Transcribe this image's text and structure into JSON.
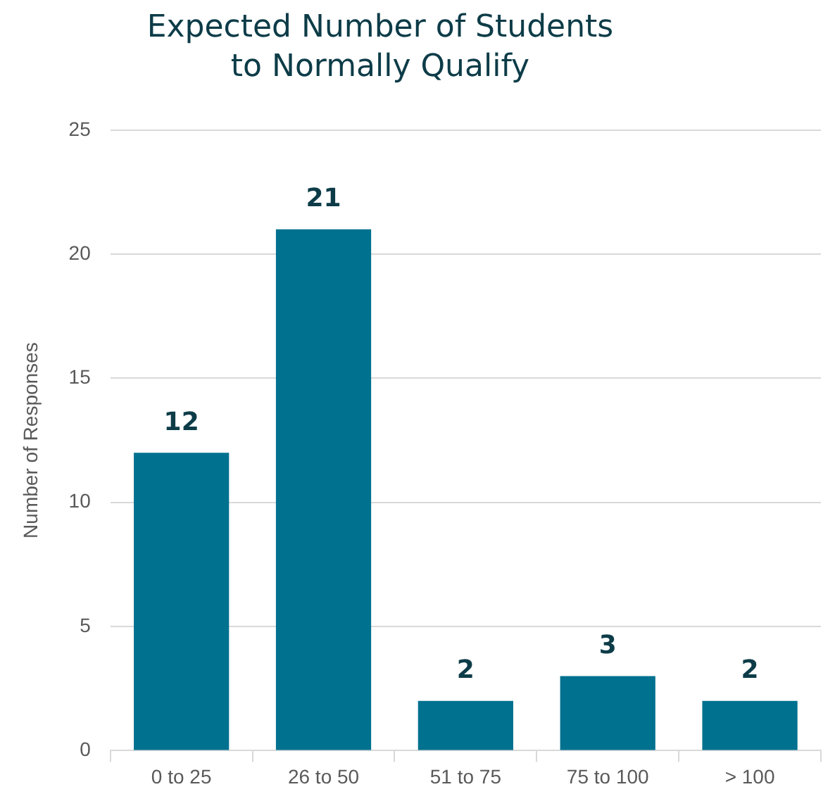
{
  "chart_data": {
    "type": "bar",
    "title": "Expected Number of Students\nto Normally Qualify",
    "ylabel": "Number of Responses",
    "categories": [
      "0 to 25",
      "26 to 50",
      "51 to 75",
      "75 to 100",
      "> 100"
    ],
    "values": [
      12,
      21,
      2,
      3,
      2
    ],
    "color": "#00718f",
    "ylim": [
      0,
      25
    ],
    "yticks": [
      0,
      5,
      10,
      15,
      20,
      25
    ],
    "grid": "y",
    "data_labels": true,
    "legend": false
  }
}
